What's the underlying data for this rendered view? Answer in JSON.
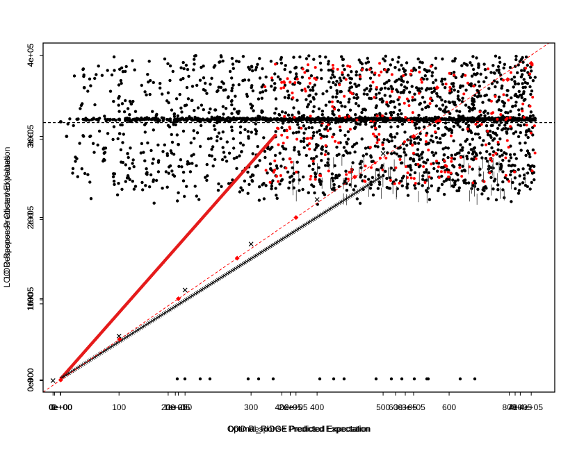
{
  "chart_data": [
    {
      "type": "scatter",
      "title": "",
      "xlabel": "LOO Response Predicted Expectation",
      "ylabel": "LOO Response Observed Values",
      "x_ticks": [
        "0e+00",
        "1e+05",
        "2e+05",
        "3e+05",
        "4e+05"
      ],
      "x_tick_values": [
        0,
        100000,
        200000,
        300000,
        400000
      ],
      "y_ticks": [
        "0e+00",
        "1e+05",
        "2e+05",
        "3e+05",
        "4e+05"
      ],
      "y_tick_values": [
        0,
        100000,
        200000,
        300000,
        400000
      ],
      "xlim": [
        -15000,
        420000
      ],
      "ylim": [
        -15000,
        415000
      ],
      "reference_lines": [
        {
          "kind": "diagonal",
          "style": "dashed",
          "color": "#ff0000"
        },
        {
          "kind": "horizontal",
          "y": 317000,
          "style": "dashed",
          "color": "#000000"
        }
      ],
      "series": [
        {
          "color": "#000000",
          "marker": "filled-circle",
          "values": [
            [
              0,
              318000
            ],
            [
              5000,
              300000
            ],
            [
              20000,
              360000
            ],
            [
              60000,
              340000
            ],
            [
              100000,
              290000
            ],
            [
              150000,
              330000
            ],
            [
              200000,
              385000
            ],
            [
              250000,
              310000
            ],
            [
              300000,
              270000
            ],
            [
              350000,
              340000
            ],
            [
              400000,
              320000
            ]
          ]
        },
        {
          "color": "#ff0000",
          "marker": "filled-diamond",
          "values": [
            [
              0,
              0
            ],
            [
              50000,
              50000
            ],
            [
              100000,
              100000
            ],
            [
              150000,
              150000
            ],
            [
              200000,
              200000
            ],
            [
              250000,
              250000
            ],
            [
              300000,
              300000
            ],
            [
              320000,
              360000
            ],
            [
              380000,
              370000
            ],
            [
              400000,
              390000
            ]
          ]
        }
      ]
    },
    {
      "type": "scatter",
      "title": "",
      "xlabel": "Optimal_RIDGE Predicted Expectation",
      "ylabel": "",
      "x_ticks": [
        "0",
        "100",
        "200",
        "300",
        "400",
        "500",
        "600",
        "700"
      ],
      "x_tick_values": [
        0,
        100,
        200,
        300,
        400,
        500,
        600,
        700
      ],
      "y_ticks": [
        "0",
        "100"
      ],
      "y_tick_values": [
        0,
        100
      ],
      "xlim": [
        -15,
        760
      ],
      "ylim": [
        -15,
        440
      ],
      "series": [
        {
          "color": "#000000",
          "marker": "cross",
          "values": [
            [
              0,
              0
            ],
            [
              100,
              58
            ],
            [
              200,
              118
            ],
            [
              300,
              178
            ],
            [
              400,
              236
            ],
            [
              500,
              296
            ]
          ]
        }
      ]
    },
    {
      "type": "scatter",
      "title": "",
      "xlabel": "Optimal_RIDGE Predicted Expectation",
      "ylabel": "",
      "x_ticks": [
        "0",
        "200",
        "400",
        "600",
        "800"
      ],
      "x_tick_values": [
        0,
        200,
        400,
        600,
        800
      ],
      "y_ticks": [
        "0",
        "100",
        "200",
        "300"
      ],
      "y_tick_values": [
        0,
        100,
        200,
        300
      ],
      "xlim": [
        -20,
        880
      ],
      "ylim": [
        -15,
        420
      ],
      "series": []
    },
    {
      "type": "scatter",
      "title": "",
      "xlabel": "Optimal_RIDGE Predicted Expectation",
      "ylabel": "LOO Response Predicted Expectation",
      "x_ticks": [
        "0e+00",
        "1e+05",
        "2e+05",
        "3e+05",
        "4e+05"
      ],
      "x_tick_values": [
        0,
        100000,
        200000,
        300000,
        400000
      ],
      "y_ticks": [
        "0e+00",
        "1e+05",
        "2e+05",
        "3e+05",
        "4e+05"
      ],
      "y_tick_values": [
        0,
        100000,
        200000,
        300000,
        400000
      ],
      "xlim": [
        -15000,
        430000
      ],
      "ylim": [
        -15000,
        415000
      ],
      "series": []
    }
  ]
}
